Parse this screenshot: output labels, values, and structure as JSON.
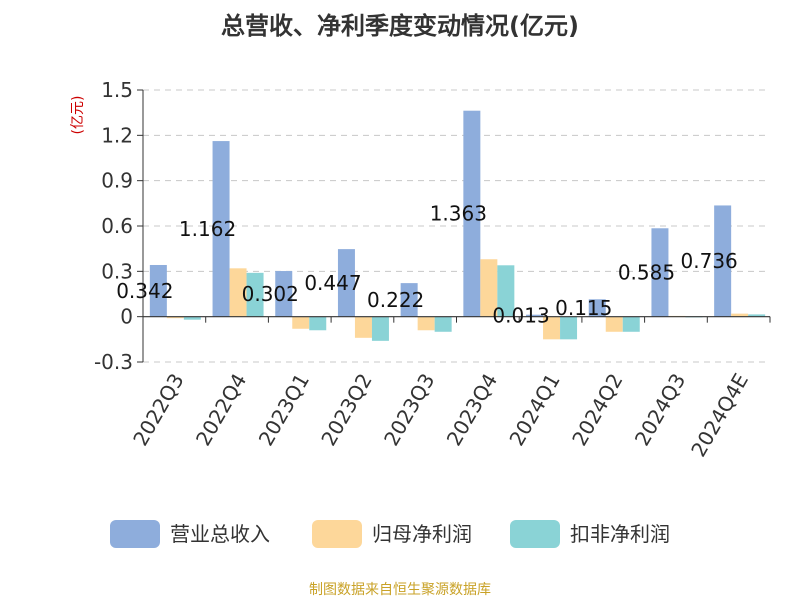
{
  "chart_data": {
    "type": "bar",
    "title": "总营收、净利季度变动情况(亿元)",
    "unit_label": "(亿元)",
    "categories": [
      "2022Q3",
      "2022Q4",
      "2023Q1",
      "2023Q2",
      "2023Q3",
      "2023Q4",
      "2024Q1",
      "2024Q2",
      "2024Q3",
      "2024Q4E"
    ],
    "series": [
      {
        "name": "营业总收入",
        "color": "#8eaddc",
        "values": [
          0.342,
          1.162,
          0.302,
          0.447,
          0.222,
          1.363,
          0.013,
          0.115,
          0.585,
          0.736
        ],
        "labels": [
          "0.342",
          "1.162",
          "0.302",
          "0.447",
          "0.222",
          "1.363",
          "0.013",
          "0.115",
          "0.585",
          "0.736"
        ]
      },
      {
        "name": "归母净利润",
        "color": "#fdd79a",
        "values": [
          -0.01,
          0.32,
          -0.08,
          -0.14,
          -0.09,
          0.38,
          -0.15,
          -0.1,
          0.005,
          0.02
        ]
      },
      {
        "name": "扣非净利润",
        "color": "#8ad3d6",
        "values": [
          -0.02,
          0.29,
          -0.09,
          -0.16,
          -0.1,
          0.34,
          -0.15,
          -0.1,
          0.002,
          0.015
        ]
      }
    ],
    "y_ticks": [
      "1.5",
      "1.2",
      "0.9",
      "0.6",
      "0.3",
      "0",
      "-0.3"
    ],
    "ylim": [
      -0.3,
      1.5
    ],
    "grid": true,
    "legend_position": "bottom"
  },
  "source_text": "制图数据来自恒生聚源数据库"
}
